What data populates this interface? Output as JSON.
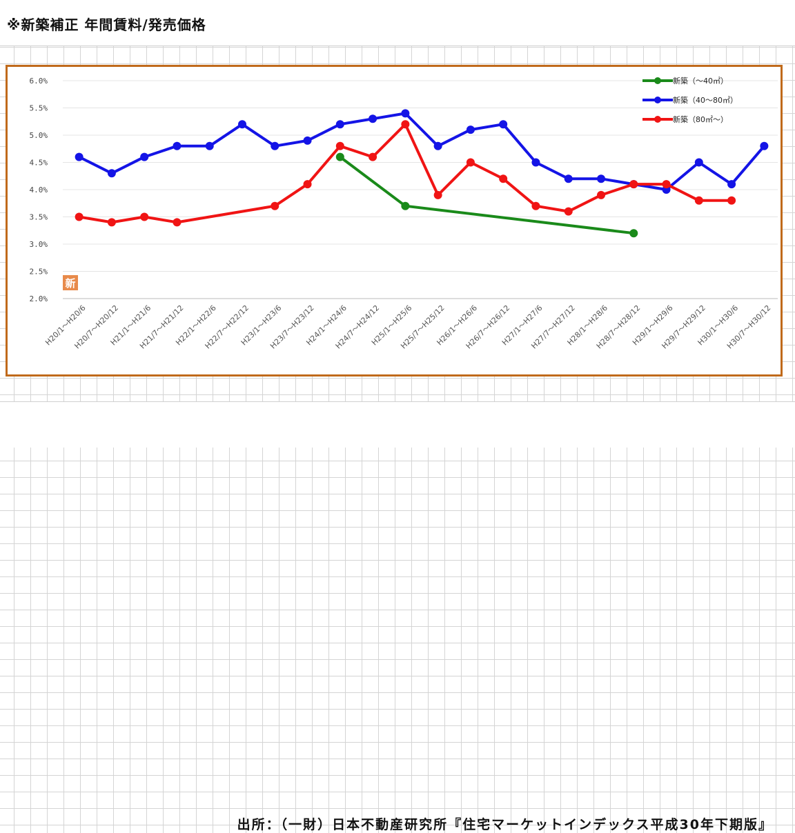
{
  "header": {
    "title": "※新築補正 年間賃料/発売価格"
  },
  "footer": {
    "source": "出所：（一財）日本不動産研究所『住宅マーケットインデックス平成30年下期版』"
  },
  "badge": {
    "text": "新"
  },
  "chart_data": {
    "type": "line",
    "categories": [
      "H20/1～H20/6",
      "H20/7～H20/12",
      "H21/1～H21/6",
      "H21/7～H21/12",
      "H22/1～H22/6",
      "H22/7～H22/12",
      "H23/1～H23/6",
      "H23/7～H23/12",
      "H24/1～H24/6",
      "H24/7～H24/12",
      "H25/1～H25/6",
      "H25/7～H25/12",
      "H26/1～H26/6",
      "H26/7～H26/12",
      "H27/1～H27/6",
      "H27/7～H27/12",
      "H28/1～H28/6",
      "H28/7～H28/12",
      "H29/1～H29/6",
      "H29/7～H29/12",
      "H30/1～H30/6",
      "H30/7～H30/12"
    ],
    "y_ticks": [
      "2.0%",
      "2.5%",
      "3.0%",
      "3.5%",
      "4.0%",
      "4.5%",
      "5.0%",
      "5.5%",
      "6.0%"
    ],
    "ylim": [
      2.0,
      6.0
    ],
    "title": "",
    "xlabel": "",
    "ylabel": "",
    "grid": true,
    "legend_position": "top-right",
    "series": [
      {
        "name": "新築（～40㎡）",
        "color": "#1a8a1a",
        "values": [
          null,
          null,
          null,
          null,
          null,
          null,
          null,
          null,
          4.6,
          null,
          3.7,
          null,
          null,
          null,
          null,
          null,
          null,
          3.2,
          null,
          null,
          null,
          null
        ]
      },
      {
        "name": "新築（40～80㎡）",
        "color": "#1414e6",
        "values": [
          4.6,
          4.3,
          4.6,
          4.8,
          4.8,
          5.2,
          4.8,
          4.9,
          5.2,
          5.3,
          5.4,
          4.8,
          5.1,
          5.2,
          4.5,
          4.2,
          4.2,
          4.1,
          4.0,
          4.5,
          4.1,
          4.8
        ]
      },
      {
        "name": "新築（80㎡～）",
        "color": "#f01414",
        "values": [
          3.5,
          3.4,
          3.5,
          3.4,
          null,
          null,
          3.7,
          4.1,
          4.8,
          4.6,
          5.2,
          3.9,
          4.5,
          4.2,
          3.7,
          3.6,
          3.9,
          4.1,
          4.1,
          3.8,
          3.8,
          null
        ]
      }
    ]
  }
}
